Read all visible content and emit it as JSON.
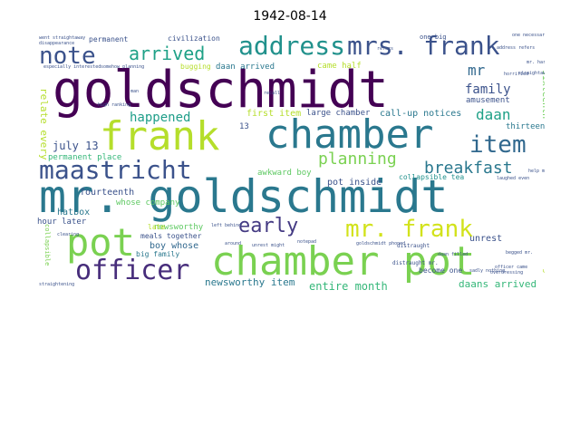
{
  "title": "1942-08-14",
  "words": [
    {
      "text": "goldschmidt",
      "color": "#440154"
    },
    {
      "text": "mr. goldschmidt",
      "color": "#2a788e"
    },
    {
      "text": "chamber pot",
      "color": "#7ad151"
    },
    {
      "text": "chamber",
      "color": "#2a788e"
    },
    {
      "text": "frank",
      "color": "#b5de2b"
    },
    {
      "text": "pot",
      "color": "#7ad151"
    },
    {
      "text": "maastricht",
      "color": "#3b528b"
    },
    {
      "text": "officer",
      "color": "#472d7b"
    },
    {
      "text": "address",
      "color": "#21918c"
    },
    {
      "text": "mrs. frank",
      "color": "#3b528b"
    },
    {
      "text": "note",
      "color": "#3b528b"
    },
    {
      "text": "mr. frank",
      "color": "#d2e21b"
    },
    {
      "text": "item",
      "color": "#31688e"
    },
    {
      "text": "early",
      "color": "#443a83"
    },
    {
      "text": "planning",
      "color": "#7ad151"
    },
    {
      "text": "arrived",
      "color": "#1fa187"
    },
    {
      "text": "breakfast",
      "color": "#2a788e"
    },
    {
      "text": "family",
      "color": "#3b528b"
    },
    {
      "text": "daan",
      "color": "#1fa187"
    },
    {
      "text": "happened",
      "color": "#1f9e89"
    },
    {
      "text": "mr",
      "color": "#31688e"
    },
    {
      "text": "july 13",
      "color": "#3b528b"
    },
    {
      "text": "newsworthy item",
      "color": "#2a788e"
    },
    {
      "text": "entire month",
      "color": "#35b779"
    },
    {
      "text": "daans arrived",
      "color": "#35b779"
    },
    {
      "text": "fourteenth",
      "color": "#3b528b"
    },
    {
      "text": "permanent place",
      "color": "#35b779"
    },
    {
      "text": "hatbox",
      "color": "#2a788e"
    },
    {
      "text": "hour later",
      "color": "#3b528b"
    },
    {
      "text": "newsworthy",
      "color": "#5ec962"
    },
    {
      "text": "boy whose",
      "color": "#31688e"
    },
    {
      "text": "meals together",
      "color": "#3b528b"
    },
    {
      "text": "big family",
      "color": "#2a788e"
    },
    {
      "text": "first item",
      "color": "#b5de2b"
    },
    {
      "text": "large chamber",
      "color": "#3b528b"
    },
    {
      "text": "call-up notices",
      "color": "#2a788e"
    },
    {
      "text": "awkward boy",
      "color": "#5ec962"
    },
    {
      "text": "pot inside",
      "color": "#3b528b"
    },
    {
      "text": "collapsible tea",
      "color": "#21918c"
    },
    {
      "text": "whose company",
      "color": "#5ec962"
    },
    {
      "text": "unrest",
      "color": "#3b528b"
    },
    {
      "text": "notices right",
      "color": "#b5de2b"
    },
    {
      "text": "thirteenth",
      "color": "#2a788e"
    },
    {
      "text": "sixteenth",
      "color": "#6ece58"
    },
    {
      "text": "amusement",
      "color": "#3b528b"
    },
    {
      "text": "relate every",
      "color": "#b5de2b"
    },
    {
      "text": "came half",
      "color": "#b5de2b"
    },
    {
      "text": "daan arrived",
      "color": "#2a788e"
    },
    {
      "text": "permanent",
      "color": "#3b528b"
    },
    {
      "text": "civilization",
      "color": "#3b528b"
    },
    {
      "text": "one big",
      "color": "#3b528b"
    },
    {
      "text": "13",
      "color": "#3b528b"
    },
    {
      "text": "late",
      "color": "#b5de2b"
    },
    {
      "text": "become one",
      "color": "#3b528b"
    },
    {
      "text": "collapsible",
      "color": "#7ad151"
    },
    {
      "text": "bugging",
      "color": "#b5de2b"
    },
    {
      "text": "went straightaway",
      "color": "#3b528b"
    },
    {
      "text": "disappearance",
      "color": "#3b528b"
    },
    {
      "text": "especially interested",
      "color": "#3b528b"
    },
    {
      "text": "somehow planning",
      "color": "#3b528b"
    },
    {
      "text": "high ranking",
      "color": "#3b528b"
    },
    {
      "text": "straightening",
      "color": "#3b528b"
    },
    {
      "text": "goldschmidt phoned",
      "color": "#3b528b"
    },
    {
      "text": "laughed even",
      "color": "#3b528b"
    },
    {
      "text": "distraught",
      "color": "#3b528b"
    },
    {
      "text": "officer came",
      "color": "#3b528b"
    },
    {
      "text": "help mr.",
      "color": "#3b528b"
    },
    {
      "text": "begged mr.",
      "color": "#3b528b"
    },
    {
      "text": "horrified",
      "color": "#3b528b"
    },
    {
      "text": "address refers",
      "color": "#3b528b"
    },
    {
      "text": "straightaway",
      "color": "#3b528b"
    },
    {
      "text": "one necessary",
      "color": "#3b528b"
    },
    {
      "text": "refers",
      "color": "#3b528b"
    },
    {
      "text": "left behind",
      "color": "#3b528b"
    },
    {
      "text": "unrest might",
      "color": "#3b528b"
    },
    {
      "text": "clearing",
      "color": "#3b528b"
    },
    {
      "text": "daan filled",
      "color": "#3b528b"
    },
    {
      "text": "recall",
      "color": "#3b528b"
    },
    {
      "text": "around",
      "color": "#3b528b"
    },
    {
      "text": "notepad",
      "color": "#3b528b"
    },
    {
      "text": "man",
      "color": "#3b528b"
    },
    {
      "text": "mr. harden",
      "color": "#3b528b"
    },
    {
      "text": "distraught mr.",
      "color": "#3b528b"
    },
    {
      "text": "overdressing",
      "color": "#3b528b"
    },
    {
      "text": "sadly nothing",
      "color": "#3b528b"
    }
  ]
}
